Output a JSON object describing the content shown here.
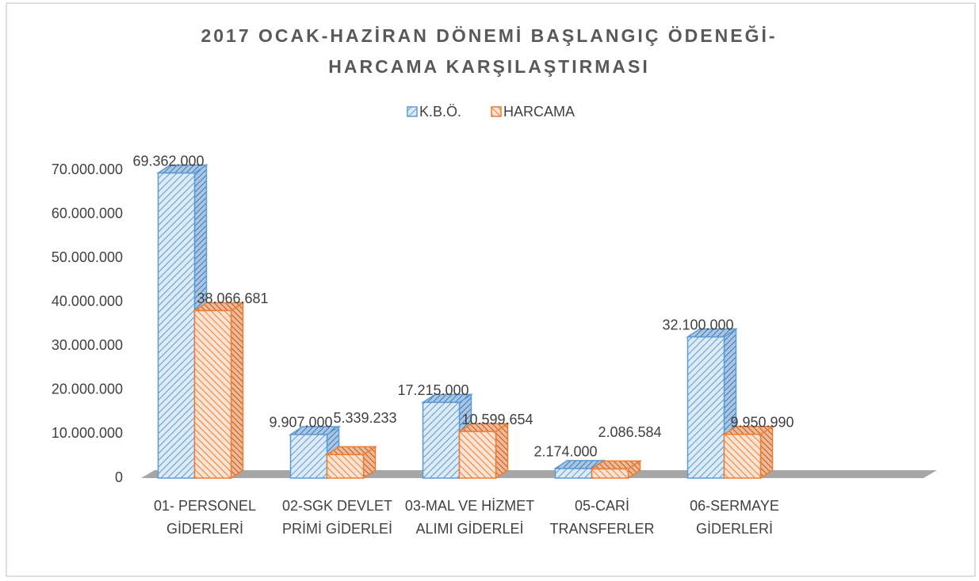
{
  "chart_data": {
    "type": "bar3d",
    "title": [
      "2017 OCAK-HAZİRAN DÖNEMİ BAŞLANGIÇ ÖDENEĞİ-",
      "HARCAMA KARŞILAŞTIRMASI"
    ],
    "categories": [
      "01- PERSONEL GİDERLERİ",
      "02-SGK DEVLET PRİMİ GİDERLEİ",
      "03-MAL VE HİZMET ALIMI GİDERLEİ",
      "05-CARİ TRANSFERLER",
      "06-SERMAYE GİDERLERİ"
    ],
    "series": [
      {
        "name": "K.B.Ö.",
        "color": "#5b9bd5",
        "values": [
          69362000,
          9907000,
          17215000,
          2174000,
          32100000
        ],
        "value_labels": [
          "69.362.000",
          "9.907.000",
          "17.215.000",
          "2.174.000",
          "32.100.000"
        ]
      },
      {
        "name": "HARCAMA",
        "color": "#ed7d31",
        "values": [
          38066681,
          5339233,
          10599654,
          2086584,
          9950990
        ],
        "value_labels": [
          "38.066.681",
          "5.339.233",
          "10.599.654",
          "2.086.584",
          "9.950.990"
        ]
      }
    ],
    "ylim": [
      0,
      70000000
    ],
    "yticks": [
      0,
      {
        "value": 10000000,
        "label": "10.000.000"
      },
      {
        "value": 20000000,
        "label": "20.000.000"
      },
      {
        "value": 30000000,
        "label": "30.000.000"
      },
      {
        "value": 40000000,
        "label": "40.000.000"
      },
      {
        "value": 50000000,
        "label": "50.000.000"
      },
      {
        "value": 60000000,
        "label": "60.000.000"
      },
      {
        "value": 70000000,
        "label": "70.000.000"
      }
    ],
    "legend": "top",
    "grid": false
  }
}
